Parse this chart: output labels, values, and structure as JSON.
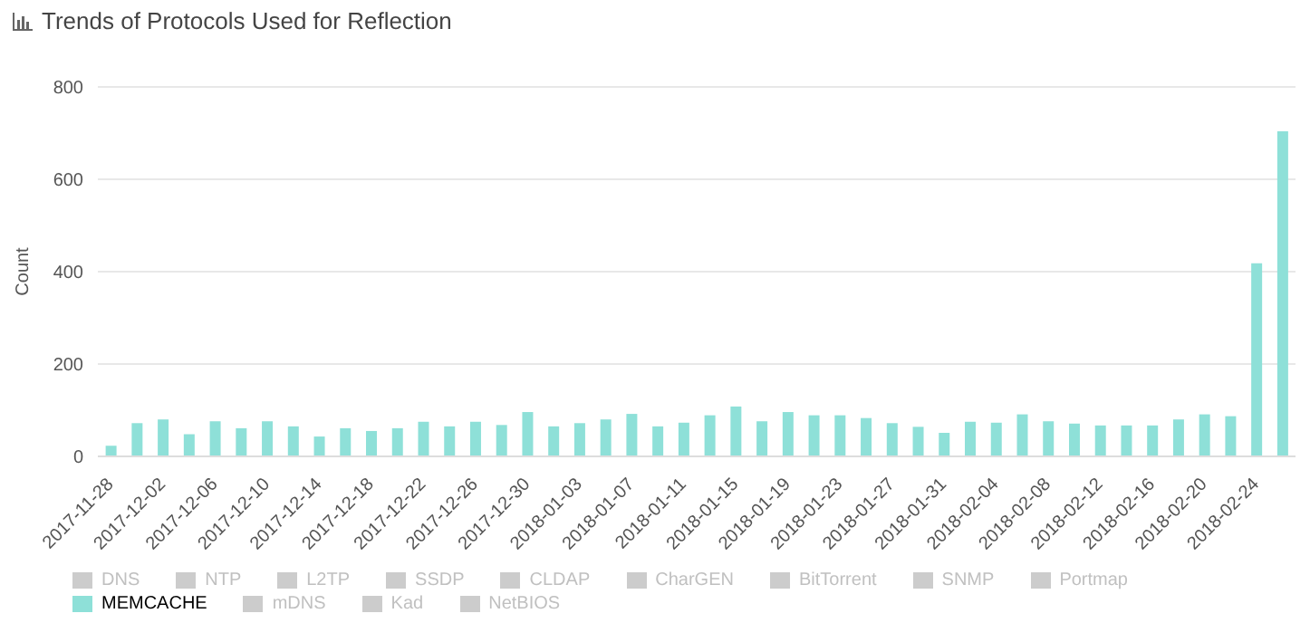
{
  "chart_data": {
    "type": "bar",
    "title": "Trends of Protocols Used for Reflection",
    "ylabel": "Count",
    "categories": [
      "2017-11-28",
      null,
      "2017-12-02",
      null,
      "2017-12-06",
      null,
      "2017-12-10",
      null,
      "2017-12-14",
      null,
      "2017-12-18",
      null,
      "2017-12-22",
      null,
      "2017-12-26",
      null,
      "2017-12-30",
      null,
      "2018-01-03",
      null,
      "2018-01-07",
      null,
      "2018-01-11",
      null,
      "2018-01-15",
      null,
      "2018-01-19",
      null,
      "2018-01-23",
      null,
      "2018-01-27",
      null,
      "2018-01-31",
      null,
      "2018-02-04",
      null,
      "2018-02-08",
      null,
      "2018-02-12",
      null,
      "2018-02-16",
      null,
      "2018-02-20",
      null,
      "2018-02-24",
      null
    ],
    "series": [
      {
        "name": "DNS",
        "color": "#cccccc",
        "values": [
          null,
          null,
          null,
          null,
          null,
          null,
          null,
          null,
          null,
          null,
          null,
          null,
          null,
          null,
          null,
          null,
          null,
          null,
          null,
          null,
          null,
          null,
          null,
          null,
          null,
          null,
          null,
          null,
          null,
          null,
          null,
          null,
          null,
          null,
          null,
          null,
          null,
          null,
          null,
          null,
          null,
          null,
          null,
          null,
          null,
          null
        ]
      },
      {
        "name": "NTP",
        "color": "#cccccc",
        "values": [
          null,
          null,
          null,
          null,
          null,
          null,
          null,
          null,
          null,
          null,
          null,
          null,
          null,
          null,
          null,
          null,
          null,
          null,
          null,
          null,
          null,
          null,
          null,
          null,
          null,
          null,
          null,
          null,
          null,
          null,
          null,
          null,
          null,
          null,
          null,
          null,
          null,
          null,
          null,
          null,
          null,
          null,
          null,
          null,
          null,
          null
        ]
      },
      {
        "name": "L2TP",
        "color": "#cccccc",
        "values": [
          null,
          null,
          null,
          null,
          null,
          null,
          null,
          null,
          null,
          null,
          null,
          null,
          null,
          null,
          null,
          null,
          null,
          null,
          null,
          null,
          null,
          null,
          null,
          null,
          null,
          null,
          null,
          null,
          null,
          null,
          null,
          null,
          null,
          null,
          null,
          null,
          null,
          null,
          null,
          null,
          null,
          null,
          null,
          null,
          null,
          null
        ]
      },
      {
        "name": "SSDP",
        "color": "#cccccc",
        "values": [
          null,
          null,
          null,
          null,
          null,
          null,
          null,
          null,
          null,
          null,
          null,
          null,
          null,
          null,
          null,
          null,
          null,
          null,
          null,
          null,
          null,
          null,
          null,
          null,
          null,
          null,
          null,
          null,
          null,
          null,
          null,
          null,
          null,
          null,
          null,
          null,
          null,
          null,
          null,
          null,
          null,
          null,
          null,
          null,
          null,
          null
        ]
      },
      {
        "name": "CLDAP",
        "color": "#cccccc",
        "values": [
          null,
          null,
          null,
          null,
          null,
          null,
          null,
          null,
          null,
          null,
          null,
          null,
          null,
          null,
          null,
          null,
          null,
          null,
          null,
          null,
          null,
          null,
          null,
          null,
          null,
          null,
          null,
          null,
          null,
          null,
          null,
          null,
          null,
          null,
          null,
          null,
          null,
          null,
          null,
          null,
          null,
          null,
          null,
          null,
          null,
          null
        ]
      },
      {
        "name": "CharGEN",
        "color": "#cccccc",
        "values": [
          null,
          null,
          null,
          null,
          null,
          null,
          null,
          null,
          null,
          null,
          null,
          null,
          null,
          null,
          null,
          null,
          null,
          null,
          null,
          null,
          null,
          null,
          null,
          null,
          null,
          null,
          null,
          null,
          null,
          null,
          null,
          null,
          null,
          null,
          null,
          null,
          null,
          null,
          null,
          null,
          null,
          null,
          null,
          null,
          null,
          null
        ]
      },
      {
        "name": "BitTorrent",
        "color": "#cccccc",
        "values": [
          null,
          null,
          null,
          null,
          null,
          null,
          null,
          null,
          null,
          null,
          null,
          null,
          null,
          null,
          null,
          null,
          null,
          null,
          null,
          null,
          null,
          null,
          null,
          null,
          null,
          null,
          null,
          null,
          null,
          null,
          null,
          null,
          null,
          null,
          null,
          null,
          null,
          null,
          null,
          null,
          null,
          null,
          null,
          null,
          null,
          null
        ]
      },
      {
        "name": "SNMP",
        "color": "#cccccc",
        "values": [
          null,
          null,
          null,
          null,
          null,
          null,
          null,
          null,
          null,
          null,
          null,
          null,
          null,
          null,
          null,
          null,
          null,
          null,
          null,
          null,
          null,
          null,
          null,
          null,
          null,
          null,
          null,
          null,
          null,
          null,
          null,
          null,
          null,
          null,
          null,
          null,
          null,
          null,
          null,
          null,
          null,
          null,
          null,
          null,
          null,
          null
        ]
      },
      {
        "name": "Portmap",
        "color": "#cccccc",
        "values": [
          null,
          null,
          null,
          null,
          null,
          null,
          null,
          null,
          null,
          null,
          null,
          null,
          null,
          null,
          null,
          null,
          null,
          null,
          null,
          null,
          null,
          null,
          null,
          null,
          null,
          null,
          null,
          null,
          null,
          null,
          null,
          null,
          null,
          null,
          null,
          null,
          null,
          null,
          null,
          null,
          null,
          null,
          null,
          null,
          null,
          null
        ]
      },
      {
        "name": "MEMCACHE",
        "color": "#8ee0d8",
        "values": [
          23,
          72,
          80,
          48,
          76,
          61,
          76,
          65,
          43,
          61,
          55,
          61,
          75,
          65,
          75,
          68,
          96,
          65,
          72,
          80,
          92,
          65,
          73,
          89,
          108,
          76,
          96,
          89,
          89,
          83,
          72,
          64,
          51,
          75,
          73,
          91,
          76,
          71,
          67,
          67,
          67,
          80,
          91,
          87,
          418,
          704
        ]
      },
      {
        "name": "mDNS",
        "color": "#cccccc",
        "values": [
          null,
          null,
          null,
          null,
          null,
          null,
          null,
          null,
          null,
          null,
          null,
          null,
          null,
          null,
          null,
          null,
          null,
          null,
          null,
          null,
          null,
          null,
          null,
          null,
          null,
          null,
          null,
          null,
          null,
          null,
          null,
          null,
          null,
          null,
          null,
          null,
          null,
          null,
          null,
          null,
          null,
          null,
          null,
          null,
          null,
          null
        ]
      },
      {
        "name": "Kad",
        "color": "#cccccc",
        "values": [
          null,
          null,
          null,
          null,
          null,
          null,
          null,
          null,
          null,
          null,
          null,
          null,
          null,
          null,
          null,
          null,
          null,
          null,
          null,
          null,
          null,
          null,
          null,
          null,
          null,
          null,
          null,
          null,
          null,
          null,
          null,
          null,
          null,
          null,
          null,
          null,
          null,
          null,
          null,
          null,
          null,
          null,
          null,
          null,
          null,
          null
        ]
      },
      {
        "name": "NetBIOS",
        "color": "#cccccc",
        "values": [
          null,
          null,
          null,
          null,
          null,
          null,
          null,
          null,
          null,
          null,
          null,
          null,
          null,
          null,
          null,
          null,
          null,
          null,
          null,
          null,
          null,
          null,
          null,
          null,
          null,
          null,
          null,
          null,
          null,
          null,
          null,
          null,
          null,
          null,
          null,
          null,
          null,
          null,
          null,
          null,
          null,
          null,
          null,
          null,
          null,
          null
        ]
      }
    ],
    "ylim": [
      0,
      800
    ],
    "yticks": [
      0,
      200,
      400,
      600,
      800
    ],
    "grid": "y",
    "legend": "bottom"
  }
}
